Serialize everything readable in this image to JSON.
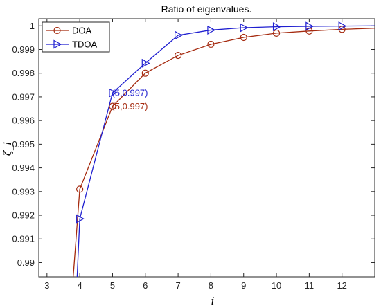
{
  "chart_data": {
    "type": "line",
    "title": "Ratio of eigenvalues.",
    "xlabel": "i",
    "ylabel": "ζ_i",
    "xlim": [
      2.75,
      13
    ],
    "ylim": [
      0.9894,
      1.0003
    ],
    "xticks": [
      3,
      4,
      5,
      6,
      7,
      8,
      9,
      10,
      11,
      12
    ],
    "yticks": [
      0.99,
      0.991,
      0.992,
      0.993,
      0.994,
      0.995,
      0.996,
      0.997,
      0.998,
      0.999,
      1
    ],
    "ytick_labels": [
      "0.99",
      "0.991",
      "0.992",
      "0.993",
      "0.994",
      "0.995",
      "0.996",
      "0.997",
      "0.998",
      "0.999",
      "1"
    ],
    "grid": false,
    "legend_position": "top-left",
    "series": [
      {
        "name": "DOA",
        "color": "#a52a0f",
        "marker": "circle",
        "x": [
          3.8,
          4,
          5,
          6,
          7,
          8,
          9,
          10,
          11,
          12,
          13
        ],
        "y": [
          0.9894,
          0.9931,
          0.9966,
          0.998,
          0.99875,
          0.99922,
          0.99951,
          0.99969,
          0.99978,
          0.99985,
          0.9999
        ],
        "marker_x": [
          4,
          5,
          6,
          7,
          8,
          9,
          10,
          11,
          12
        ],
        "marker_y": [
          0.9931,
          0.9966,
          0.998,
          0.99875,
          0.99922,
          0.99951,
          0.99969,
          0.99978,
          0.99985
        ]
      },
      {
        "name": "TDOA",
        "color": "#1f1fd0",
        "marker": "triangle-right",
        "x": [
          3.92,
          4,
          5,
          6,
          7,
          8,
          9,
          10,
          11,
          12,
          13
        ],
        "y": [
          0.9894,
          0.99185,
          0.99717,
          0.99842,
          0.9996,
          0.99982,
          0.99992,
          0.99996,
          0.99998,
          0.99999,
          1.0
        ],
        "marker_x": [
          4,
          5,
          6,
          7,
          8,
          9,
          10,
          11,
          12
        ],
        "marker_y": [
          0.99185,
          0.99717,
          0.99842,
          0.9996,
          0.99982,
          0.99992,
          0.99996,
          0.99998,
          0.99999
        ]
      }
    ],
    "annotations": [
      {
        "text": "(5,0.997)",
        "x": 5,
        "y": 0.99717,
        "color": "#1f1fd0"
      },
      {
        "text": "(5,0.997)",
        "x": 5,
        "y": 0.9966,
        "color": "#a52a0f"
      }
    ]
  }
}
